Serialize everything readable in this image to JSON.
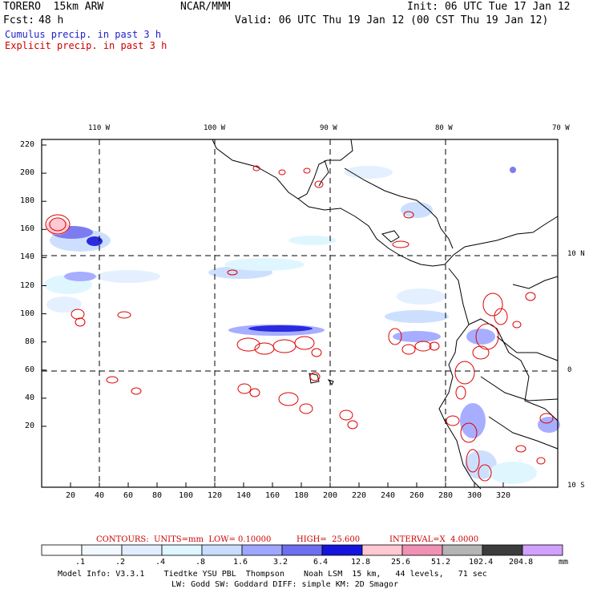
{
  "header": {
    "model_title": "TORERO  15km ARW",
    "center": "NCAR/MMM",
    "init": "Init: 06 UTC Tue 17 Jan 12",
    "fcst_label": "Fcst:",
    "fcst_value": "48 h",
    "valid": "Valid: 06 UTC Thu 19 Jan 12 (00 CST Thu 19 Jan 12)",
    "field1": "Cumulus precip. in past 3 h",
    "field2": "Explicit precip. in past 3 h",
    "field1_color": "#2222cc",
    "field2_color": "#cc0000"
  },
  "map": {
    "lon_labels": [
      "110 W",
      "100 W",
      "90 W",
      "80 W",
      "70 W"
    ],
    "lat_labels": [
      "10 N",
      "0",
      "10 S"
    ],
    "y_ticks": [
      "220",
      "200",
      "180",
      "160",
      "140",
      "120",
      "100",
      "80",
      "60",
      "40",
      "20"
    ],
    "x_ticks": [
      "20",
      "40",
      "60",
      "80",
      "100",
      "120",
      "140",
      "160",
      "180",
      "200",
      "220",
      "240",
      "260",
      "280",
      "300",
      "320"
    ]
  },
  "contour_info": {
    "units": "CONTOURS:  UNITS=mm  LOW= 0.10000",
    "high": "HIGH=  25.600",
    "interval": "INTERVAL=X  4.0000"
  },
  "legend": {
    "labels": [
      ".1",
      ".2",
      ".4",
      ".8",
      "1.6",
      "3.2",
      "6.4",
      "12.8",
      "25.6",
      "51.2",
      "102.4",
      "204.8"
    ],
    "unit": "mm",
    "colors": [
      "#ffffff",
      "#f2f8ff",
      "#e2eeff",
      "#ddf6ff",
      "#c8dcff",
      "#9ea6ff",
      "#6e6ef0",
      "#1414dc",
      "#ffc8d2",
      "#f090b4",
      "#b4b4b4",
      "#3c3c3c",
      "#d2a0ff"
    ]
  },
  "footer": {
    "line1": "Model Info: V3.3.1    Tiedtke YSU PBL  Thompson    Noah LSM  15 km,   44 levels,   71 sec",
    "line2": "LW: Godd SW: Goddard DIFF: simple KM: 2D Smagor"
  }
}
